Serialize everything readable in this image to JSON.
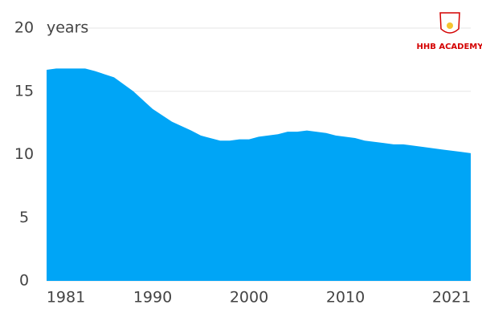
{
  "chart_data": {
    "type": "area",
    "y_unit": "years",
    "watermark": "HHB ACADEMY",
    "color": "#00a5f6",
    "x": [
      1979,
      1980,
      1983,
      1984,
      1986,
      1988,
      1990,
      1992,
      1994,
      1995,
      1997,
      1998,
      1999,
      2000,
      2001,
      2003,
      2004,
      2005,
      2006,
      2008,
      2009,
      2011,
      2012,
      2014,
      2015,
      2016,
      2018,
      2020,
      2022,
      2023
    ],
    "values": [
      16.7,
      16.8,
      16.8,
      16.6,
      16.1,
      15.0,
      13.6,
      12.6,
      11.9,
      11.5,
      11.1,
      11.1,
      11.2,
      11.2,
      11.4,
      11.6,
      11.8,
      11.8,
      11.9,
      11.7,
      11.5,
      11.3,
      11.1,
      10.9,
      10.8,
      10.8,
      10.6,
      10.4,
      10.2,
      10.1
    ],
    "xlim": [
      1979,
      2023
    ],
    "xticks": [
      1981,
      1990,
      2000,
      2010,
      2021
    ],
    "ylim": [
      0,
      20
    ],
    "yticks": [
      0,
      5,
      10,
      15,
      20
    ],
    "grid": true
  }
}
